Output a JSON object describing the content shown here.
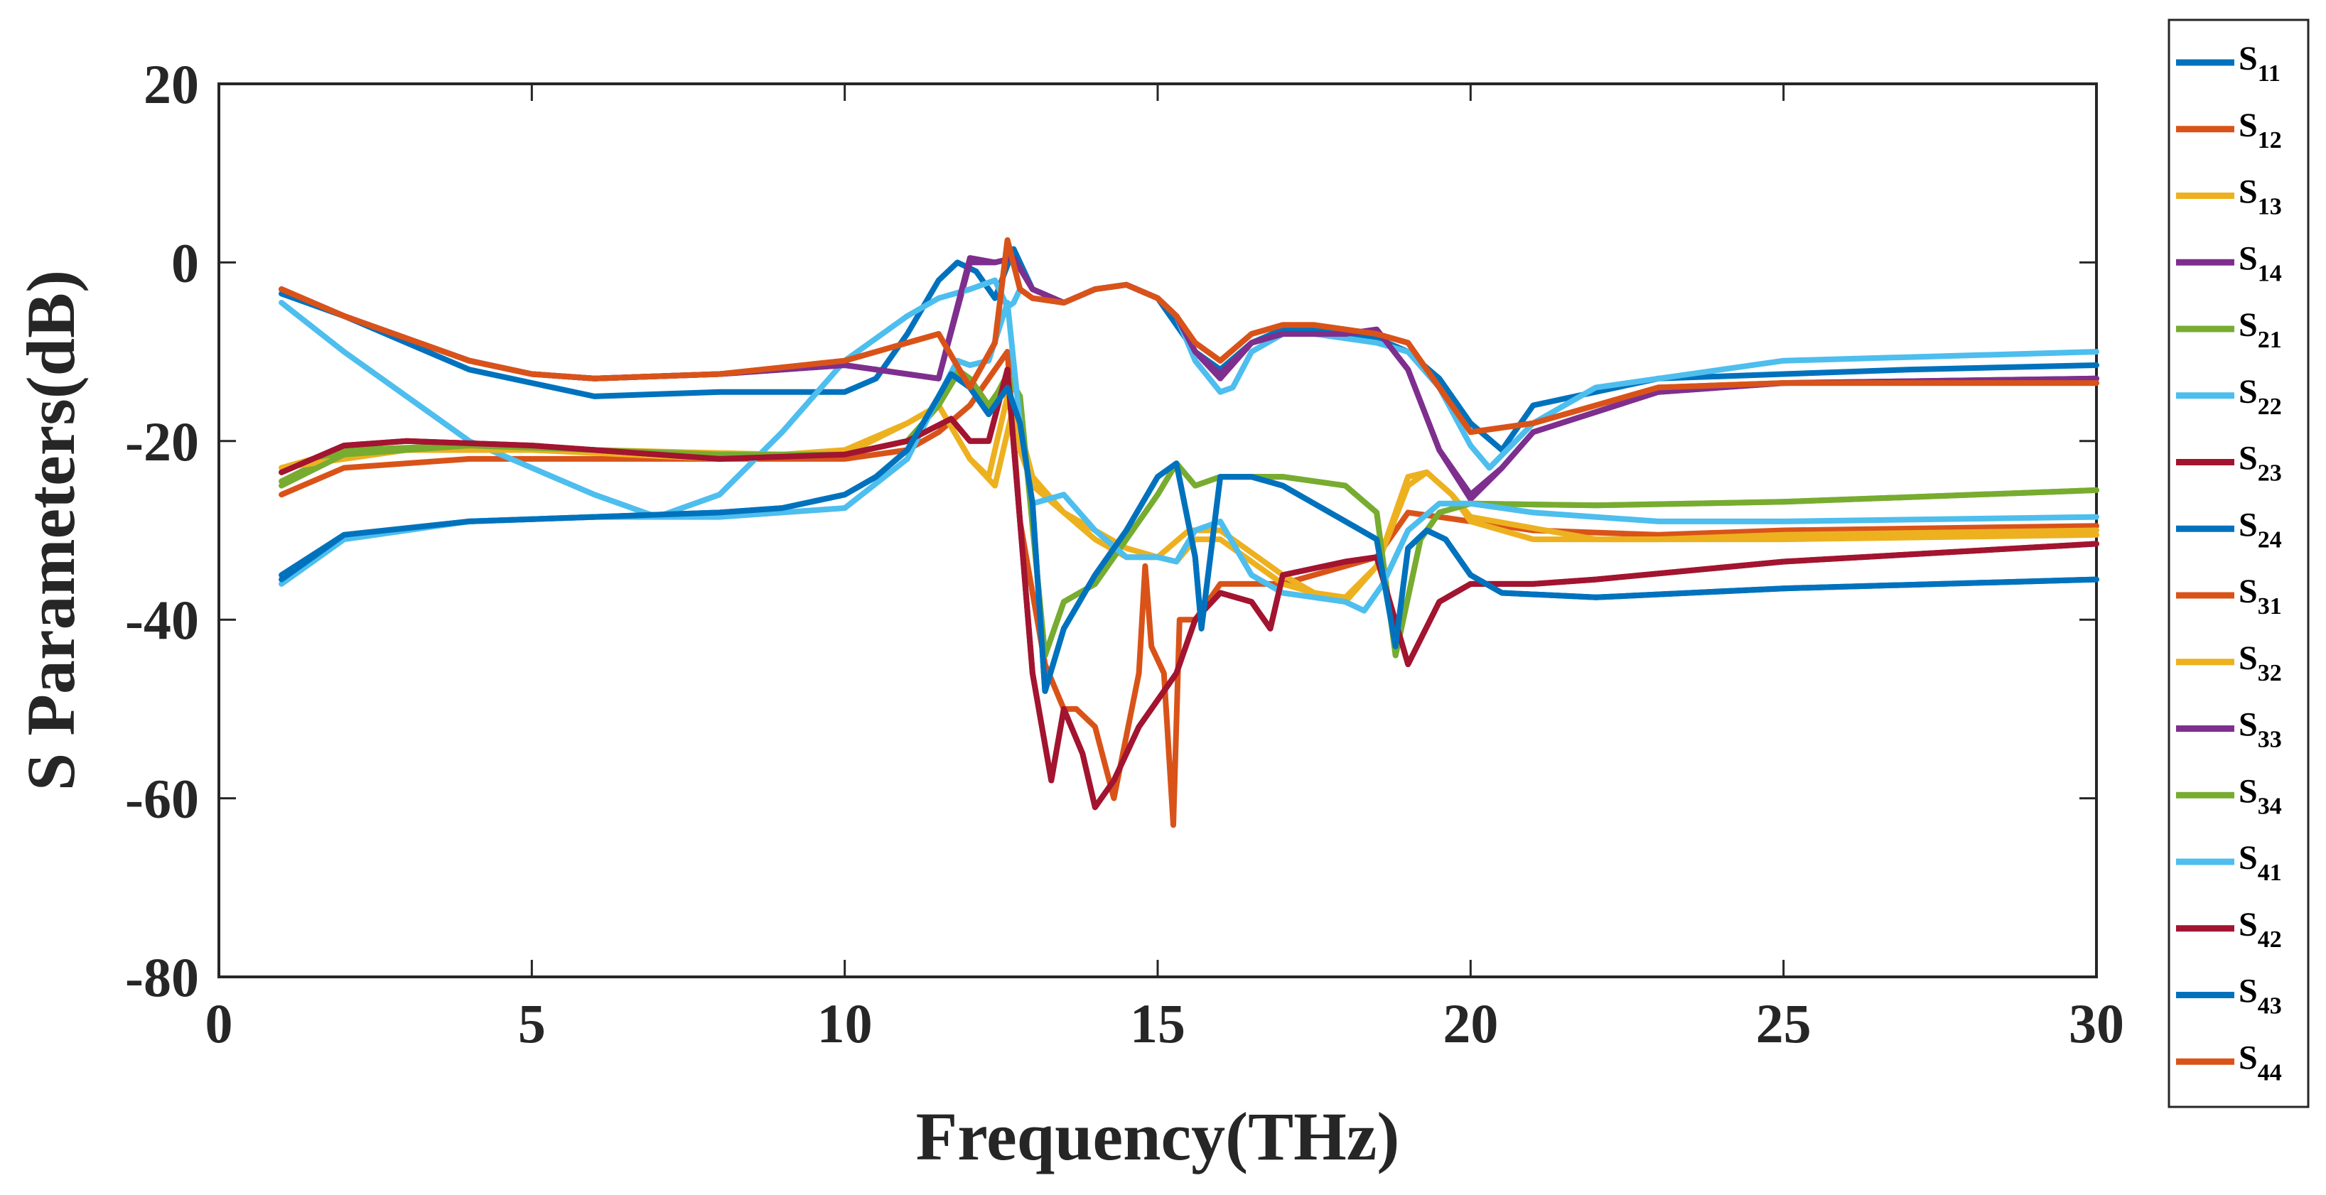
{
  "chart_data": {
    "type": "line",
    "title": "",
    "xlabel": "Frequency(THz)",
    "ylabel": "S Parameters(dB)",
    "xlim": [
      0,
      30
    ],
    "ylim": [
      -80,
      20
    ],
    "xticks": [
      0,
      5,
      10,
      15,
      20,
      25,
      30
    ],
    "yticks": [
      -80,
      -60,
      -40,
      -20,
      0,
      20
    ],
    "xtick_labels": [
      "0",
      "5",
      "10",
      "15",
      "20",
      "25",
      "30"
    ],
    "ytick_labels": [
      "-80",
      "-60",
      "-40",
      "-20",
      "0",
      "20"
    ],
    "grid": false,
    "legend_position": "outside-right",
    "series": [
      {
        "name": "S11",
        "label_main": "S",
        "label_sub": "11",
        "color": "#0072BD",
        "x": [
          1,
          2,
          4,
          6,
          8,
          9,
          10,
          10.5,
          11,
          11.5,
          11.8,
          12.1,
          12.4,
          12.7,
          13,
          13.5,
          14,
          14.5,
          15,
          15.3,
          15.6,
          16,
          16.5,
          17,
          17.5,
          18,
          18.5,
          19,
          19.5,
          20,
          20.5,
          21,
          23,
          25,
          27,
          30
        ],
        "y": [
          -3.5,
          -6,
          -12,
          -15,
          -14.5,
          -14.5,
          -14.5,
          -13,
          -8,
          -2,
          0,
          -1,
          -4,
          1.5,
          -3,
          -4.5,
          -3,
          -2.5,
          -4,
          -7,
          -10,
          -12,
          -9,
          -7.5,
          -7.5,
          -8,
          -8.5,
          -10,
          -13,
          -18,
          -21,
          -16,
          -13,
          -12.5,
          -12,
          -11.5
        ]
      },
      {
        "name": "S12",
        "label_main": "S",
        "label_sub": "12",
        "color": "#D95319",
        "x": [
          1,
          2,
          4,
          5,
          8,
          10,
          11,
          11.5,
          12,
          12.4,
          12.6,
          12.8,
          13.2,
          13.5,
          13.7,
          14,
          14.3,
          14.7,
          14.8,
          14.9,
          15.1,
          15.25,
          15.35,
          15.6,
          16,
          17,
          18,
          18.5,
          19,
          20,
          21,
          23,
          25,
          30
        ],
        "y": [
          -26,
          -23,
          -22,
          -22,
          -22,
          -22,
          -21,
          -19,
          -16,
          -12,
          -10,
          -29,
          -45,
          -50,
          -50,
          -52,
          -60,
          -46,
          -34,
          -43,
          -46,
          -63,
          -40,
          -40,
          -36,
          -36,
          -34,
          -33,
          -28,
          -29,
          -30,
          -30.5,
          -30,
          -29.5
        ]
      },
      {
        "name": "S13",
        "label_main": "S",
        "label_sub": "13",
        "color": "#EDB120",
        "x": [
          1,
          2,
          5,
          8,
          10,
          11,
          11.5,
          12,
          12.3,
          12.6,
          12.8,
          13,
          13.5,
          14,
          14.5,
          15,
          15.3,
          15.6,
          16,
          17,
          17.5,
          18,
          18.5,
          19,
          19.3,
          19.7,
          20,
          21,
          23,
          25,
          30
        ],
        "y": [
          -23,
          -21,
          -21,
          -22,
          -21.5,
          -18,
          -16,
          -22,
          -24,
          -15,
          -21,
          -25,
          -28,
          -31,
          -33,
          -33,
          -33.5,
          -31,
          -31,
          -36,
          -37,
          -38,
          -34,
          -24,
          -23.5,
          -26,
          -29,
          -31,
          -31,
          -30.5,
          -30
        ]
      },
      {
        "name": "S14",
        "label_main": "S",
        "label_sub": "14",
        "color": "#7E2F8E",
        "x": [
          1,
          2,
          4,
          5,
          6,
          8,
          9,
          10,
          10.5,
          11,
          11.5,
          12,
          12.4,
          12.7,
          13,
          13.5,
          14,
          14.5,
          15,
          15.3,
          15.6,
          16,
          16.5,
          17,
          17.5,
          18,
          18.5,
          19,
          19.5,
          20,
          20.5,
          21,
          23,
          25,
          30
        ],
        "y": [
          -3,
          -6,
          -11,
          -12.5,
          -13,
          -12.5,
          -12,
          -11.5,
          -12,
          -12.5,
          -13,
          0,
          0,
          0.5,
          -3,
          -4.5,
          -3,
          -2.5,
          -4,
          -6,
          -10,
          -13,
          -9,
          -8,
          -8,
          -8,
          -7.5,
          -12,
          -21,
          -26,
          -23,
          -19,
          -14.5,
          -13.5,
          -13
        ]
      },
      {
        "name": "S21",
        "label_main": "S",
        "label_sub": "21",
        "color": "#77AC30",
        "x": [
          1,
          2,
          4,
          6,
          8,
          10,
          11,
          11.5,
          11.8,
          12,
          12.3,
          12.6,
          12.8,
          13.2,
          13.5,
          14,
          14.5,
          15,
          15.3,
          15.6,
          16,
          17,
          18,
          18.5,
          18.8,
          19.2,
          19.5,
          20,
          22,
          25,
          30
        ],
        "y": [
          -24.5,
          -21,
          -20.5,
          -21,
          -21.5,
          -21.5,
          -20,
          -16,
          -12.5,
          -13,
          -16,
          -13,
          -15,
          -44,
          -38,
          -36,
          -31,
          -26,
          -22.5,
          -25,
          -24,
          -24,
          -25,
          -28,
          -44,
          -31,
          -28,
          -27,
          -27.2,
          -26.8,
          -25.5
        ]
      },
      {
        "name": "S22",
        "label_main": "S",
        "label_sub": "22",
        "color": "#4DBEEE",
        "x": [
          1,
          2,
          4,
          6,
          7,
          8,
          9,
          10,
          11,
          11.5,
          12,
          12.4,
          12.6,
          12.7,
          12.8,
          13,
          13.5,
          14,
          14.5,
          15,
          15.3,
          15.6,
          16,
          16.2,
          16.5,
          17,
          17.5,
          18,
          18.5,
          19,
          19.5,
          20,
          20.3,
          21,
          22,
          25,
          30
        ],
        "y": [
          -4.5,
          -10,
          -20,
          -26,
          -28.5,
          -26,
          -19,
          -11,
          -6,
          -4,
          -3,
          -2,
          -5,
          -4.5,
          -3,
          -4,
          -4.5,
          -3,
          -2.5,
          -4,
          -6,
          -11,
          -14.5,
          -14,
          -10,
          -8,
          -8,
          -8.5,
          -9,
          -10,
          -14,
          -20.5,
          -23,
          -18,
          -14,
          -11,
          -10
        ]
      },
      {
        "name": "S23",
        "label_main": "S",
        "label_sub": "23",
        "color": "#A2142F",
        "x": [
          1,
          2,
          3,
          5,
          8,
          10,
          11,
          11.7,
          12,
          12.3,
          12.6,
          12.8,
          13,
          13.3,
          13.5,
          13.8,
          14,
          14.3,
          14.7,
          15,
          15.3,
          15.6,
          16,
          16.5,
          16.8,
          17,
          18,
          18.5,
          19,
          19.5,
          20,
          21,
          22,
          25,
          30
        ],
        "y": [
          -23.5,
          -20.5,
          -20,
          -20.5,
          -22,
          -21.5,
          -20,
          -17.5,
          -20,
          -20,
          -12,
          -29,
          -46,
          -58,
          -50,
          -55,
          -61,
          -58,
          -52,
          -49,
          -46,
          -40,
          -37,
          -38,
          -41,
          -35,
          -33.5,
          -33,
          -45,
          -38,
          -36,
          -36,
          -35.5,
          -33.5,
          -31.5
        ]
      },
      {
        "name": "S24",
        "label_main": "S",
        "label_sub": "24",
        "color": "#0072BD",
        "x": [
          1,
          2,
          4,
          6,
          8,
          9,
          10,
          10.5,
          11,
          11.5,
          11.7,
          12,
          12.3,
          12.6,
          12.8,
          13,
          13.2,
          13.5,
          14,
          14.5,
          15,
          15.3,
          15.6,
          15.7,
          16,
          16.5,
          17,
          17.5,
          18,
          18.5,
          18.8,
          19,
          19.3,
          19.6,
          20,
          20.5,
          22,
          25,
          30
        ],
        "y": [
          -35,
          -30.5,
          -29,
          -28.5,
          -28,
          -27.5,
          -26,
          -24,
          -21,
          -15,
          -12.5,
          -14,
          -17,
          -14,
          -18,
          -27,
          -48,
          -41,
          -35,
          -30,
          -24,
          -22.5,
          -33,
          -41,
          -24,
          -24,
          -25,
          -27,
          -29,
          -31,
          -43,
          -32,
          -30,
          -31,
          -35,
          -37,
          -37.5,
          -36.5,
          -35.5
        ]
      },
      {
        "name": "S31",
        "label_main": "S",
        "label_sub": "31",
        "color": "#D95319",
        "x": [
          1,
          2,
          4,
          5,
          6,
          8,
          10,
          11,
          11.5,
          12,
          12.4,
          12.6,
          12.8,
          13,
          13.5,
          14,
          14.5,
          15,
          15.3,
          15.6,
          16,
          16.5,
          17,
          17.5,
          18,
          18.5,
          19,
          19.5,
          20,
          21,
          23,
          25,
          30
        ],
        "y": [
          -3,
          -6,
          -11,
          -12.5,
          -13,
          -12.5,
          -11,
          -9,
          -8,
          -14,
          -9,
          2.5,
          -3,
          -4,
          -4.5,
          -3,
          -2.5,
          -4,
          -6,
          -9,
          -11,
          -8,
          -7,
          -7,
          -7.5,
          -8,
          -9,
          -14,
          -19,
          -18,
          -14,
          -13.5,
          -13.5
        ]
      },
      {
        "name": "S32",
        "label_main": "S",
        "label_sub": "32",
        "color": "#EDB120",
        "x": [
          1,
          3,
          6,
          9,
          10,
          11,
          11.5,
          12,
          12.4,
          12.7,
          13,
          13.5,
          14,
          14.5,
          15,
          15.5,
          16,
          17,
          17.5,
          18,
          18.5,
          19,
          19.3,
          19.7,
          20,
          22,
          25,
          30
        ],
        "y": [
          -23,
          -21,
          -21,
          -21.5,
          -21,
          -18,
          -16,
          -22,
          -25,
          -16,
          -24,
          -28,
          -30,
          -32,
          -33,
          -30,
          -30,
          -35,
          -37,
          -37.5,
          -34,
          -25,
          -23.5,
          -26,
          -28.5,
          -31,
          -31,
          -30.5
        ]
      },
      {
        "name": "S33",
        "label_main": "S",
        "label_sub": "33",
        "color": "#7E2F8E",
        "x": [
          1,
          2,
          4,
          5,
          6,
          8,
          9,
          10,
          10.5,
          11,
          11.5,
          12,
          12.4,
          12.7,
          13,
          13.5,
          14,
          14.5,
          15,
          15.3,
          15.6,
          16,
          16.5,
          17,
          17.5,
          18,
          18.5,
          19,
          19.5,
          20,
          20.5,
          21,
          23,
          25,
          30
        ],
        "y": [
          -3,
          -6,
          -11,
          -12.5,
          -13,
          -12.5,
          -12,
          -11.5,
          -12,
          -12.5,
          -13,
          0.5,
          0,
          0.5,
          -3,
          -4.5,
          -3,
          -2.5,
          -4,
          -6,
          -10,
          -12.5,
          -9,
          -8,
          -8,
          -8,
          -7.5,
          -12,
          -21,
          -26.5,
          -23,
          -19,
          -14.5,
          -13.5,
          -13
        ]
      },
      {
        "name": "S34",
        "label_main": "S",
        "label_sub": "34",
        "color": "#77AC30",
        "x": [
          1,
          2,
          4,
          6,
          8,
          10,
          11,
          11.5,
          11.8,
          12,
          12.3,
          12.6,
          12.8,
          13.2,
          13.5,
          14,
          14.5,
          15,
          15.3,
          15.6,
          16,
          17,
          18,
          18.5,
          18.8,
          19.2,
          19.5,
          20,
          22,
          25,
          30
        ],
        "y": [
          -25,
          -21.5,
          -20.5,
          -21,
          -21.5,
          -21.5,
          -20,
          -16,
          -12,
          -13,
          -16.5,
          -12.5,
          -15,
          -44,
          -38,
          -36,
          -31,
          -26,
          -22.5,
          -25,
          -24,
          -24,
          -25,
          -28,
          -44,
          -31,
          -28,
          -27,
          -27.2,
          -26.8,
          -25.5
        ]
      },
      {
        "name": "S41",
        "label_main": "S",
        "label_sub": "41",
        "color": "#4DBEEE",
        "x": [
          1,
          2,
          4,
          6,
          8,
          10,
          11,
          11.5,
          11.8,
          12,
          12.3,
          12.6,
          12.8,
          13,
          13.5,
          14,
          14.5,
          15,
          15.3,
          15.6,
          16,
          16.5,
          17,
          17.5,
          18,
          18.3,
          18.6,
          19,
          19.5,
          20,
          21,
          23,
          25,
          30
        ],
        "y": [
          -36,
          -31,
          -29,
          -28.5,
          -28.5,
          -27.5,
          -22,
          -15,
          -11,
          -11.5,
          -11,
          -4.5,
          -18,
          -27,
          -26,
          -30,
          -33,
          -33,
          -33.5,
          -30,
          -29,
          -35,
          -37,
          -37.5,
          -38,
          -39,
          -36,
          -30,
          -27,
          -27,
          -28,
          -29,
          -29,
          -28.5
        ]
      },
      {
        "name": "S42",
        "label_main": "S",
        "label_sub": "42",
        "color": "#A2142F",
        "x": [
          1,
          2,
          3,
          5,
          8,
          10,
          11,
          11.7,
          12,
          12.3,
          12.6,
          12.8,
          13,
          13.3,
          13.5,
          13.8,
          14,
          14.3,
          14.7,
          15,
          15.3,
          15.6,
          16,
          16.5,
          16.8,
          17,
          18,
          18.5,
          19,
          19.5,
          20,
          21,
          22,
          25,
          30
        ],
        "y": [
          -23.5,
          -20.5,
          -20,
          -20.5,
          -22,
          -21.5,
          -20,
          -17.5,
          -20,
          -20,
          -12,
          -29,
          -46,
          -58,
          -50,
          -55,
          -61,
          -58,
          -52,
          -49,
          -46,
          -40,
          -37,
          -38,
          -41,
          -35,
          -33.5,
          -33,
          -45,
          -38,
          -36,
          -36,
          -35.5,
          -33.5,
          -31.5
        ]
      },
      {
        "name": "S43",
        "label_main": "S",
        "label_sub": "43",
        "color": "#0072BD",
        "x": [
          1,
          2,
          4,
          6,
          8,
          9,
          10,
          10.5,
          11,
          11.5,
          11.7,
          12,
          12.3,
          12.6,
          12.8,
          13,
          13.2,
          13.5,
          14,
          14.5,
          15,
          15.3,
          15.6,
          15.7,
          16,
          16.5,
          17,
          17.5,
          18,
          18.5,
          18.8,
          19,
          19.3,
          19.6,
          20,
          20.5,
          22,
          25,
          30
        ],
        "y": [
          -35.5,
          -30.5,
          -29,
          -28.5,
          -28,
          -27.5,
          -26,
          -24,
          -21,
          -15,
          -12.5,
          -14,
          -17,
          -14,
          -18,
          -27,
          -48,
          -41,
          -35,
          -30,
          -24,
          -22.5,
          -33,
          -41,
          -24,
          -24,
          -25,
          -27,
          -29,
          -31,
          -43,
          -32,
          -30,
          -31,
          -35,
          -37,
          -37.5,
          -36.5,
          -35.5
        ]
      },
      {
        "name": "S44",
        "label_main": "S",
        "label_sub": "44",
        "color": "#D95319",
        "x": [
          1,
          2,
          4,
          5,
          6,
          8,
          10,
          11,
          11.5,
          12,
          12.4,
          12.6,
          12.8,
          13,
          13.5,
          14,
          14.5,
          15,
          15.3,
          15.6,
          16,
          16.5,
          17,
          17.5,
          18,
          18.5,
          19,
          19.5,
          20,
          21,
          23,
          25,
          30
        ],
        "y": [
          -3,
          -6,
          -11,
          -12.5,
          -13,
          -12.5,
          -11,
          -9,
          -8,
          -14,
          -9,
          2.5,
          -3,
          -4,
          -4.5,
          -3,
          -2.5,
          -4,
          -6,
          -9,
          -11,
          -8,
          -7,
          -7,
          -7.5,
          -8,
          -9,
          -14,
          -19,
          -18,
          -14,
          -13.5,
          -13.5
        ]
      }
    ]
  }
}
